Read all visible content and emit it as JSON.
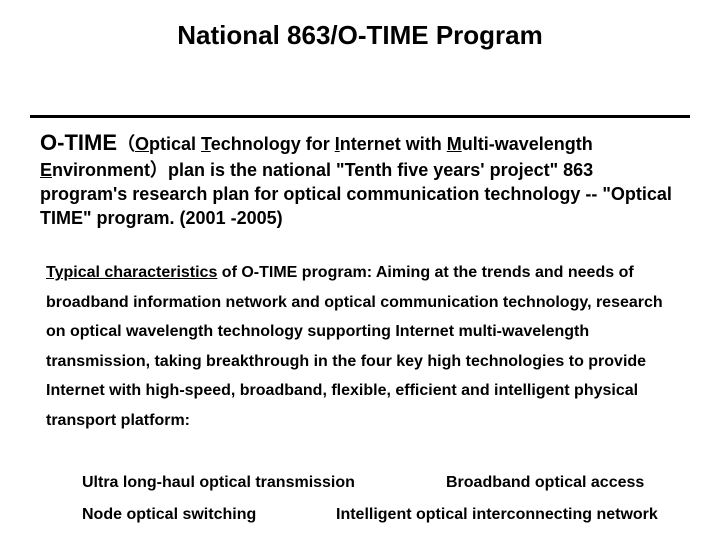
{
  "title": "National 863/O-TIME Program",
  "intro": {
    "otime_label": "O-TIME",
    "paren_open": "（",
    "acronym": {
      "o_u": "O",
      "o_rest": "ptical ",
      "t_u": "T",
      "t_rest": "echnology for ",
      "i_u": "I",
      "i_rest": "nternet with ",
      "m_u": "M",
      "m_rest": "ulti-wavelength ",
      "e_u": "E",
      "e_rest": "nvironment"
    },
    "paren_close": "）",
    "rest": "plan is the national \"Tenth five years' project\" 863 program's research plan for optical communication technology -- \"Optical TIME\" program. (2001 -2005)"
  },
  "body": {
    "lead_u": "Typical characteristics",
    "lead_rest": " of O-TIME program: Aiming at the trends and needs of broadband information network and optical communication technology, research on optical wavelength technology supporting Internet multi-wavelength transmission, taking breakthrough in the four key high technologies to provide Internet with high-speed, broadband, flexible, efficient and intelligent physical transport platform:"
  },
  "keytech": {
    "r1a": "Ultra long-haul optical transmission",
    "r1b": "Broadband optical access",
    "r2a": "Node optical switching",
    "r2b": "Intelligent optical interconnecting network"
  },
  "colors": {
    "text": "#000000",
    "background": "#ffffff",
    "rule": "#000000"
  }
}
